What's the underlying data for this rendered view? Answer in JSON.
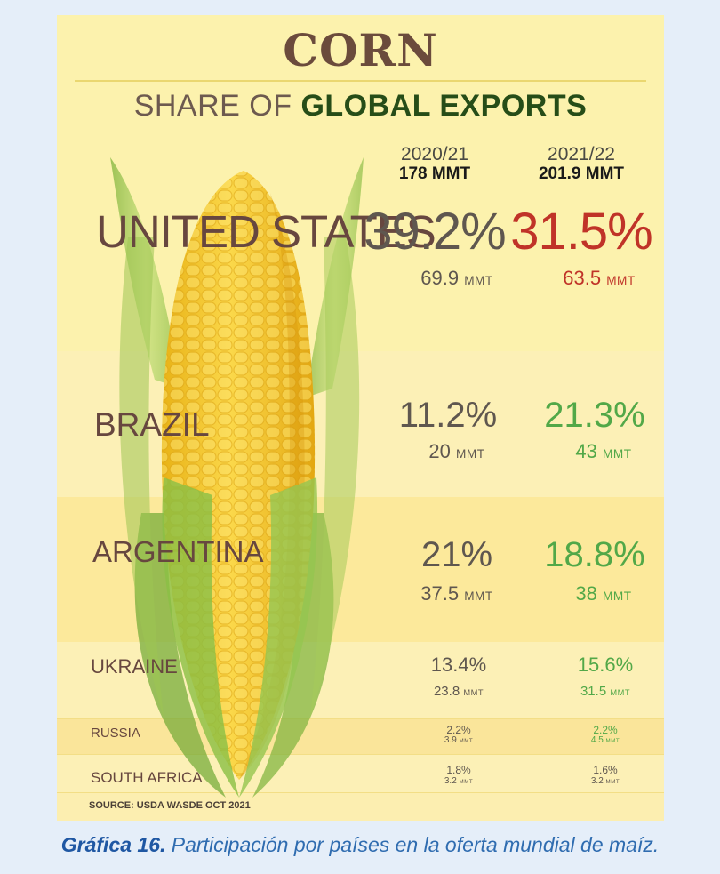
{
  "title": "CORN",
  "subtitle_prefix": "SHARE OF",
  "subtitle_emphasis": "GLOBAL EXPORTS",
  "years": [
    {
      "label": "2020/21",
      "total": "178 MMT"
    },
    {
      "label": "2021/22",
      "total": "201.9 MMT"
    }
  ],
  "unit": "MMT",
  "source": "SOURCE: USDA WASDE OCT 2021",
  "caption_lead": "Gráfica 16.",
  "caption_text": "Participación por países en la oferta mundial de maíz.",
  "colors": {
    "background": "#e5eef9",
    "poster": "#fcf2ad",
    "title": "#6b4b3c",
    "emphasis": "#264d18",
    "decrease": "#c03328",
    "increase": "#52a848",
    "neutral": "#5f574f",
    "caption": "#2f6cb0"
  },
  "chart_data": {
    "type": "table",
    "title": "CORN",
    "subtitle": "SHARE OF GLOBAL EXPORTS",
    "columns": [
      "2020/21",
      "2021/22"
    ],
    "column_totals": [
      "178 MMT",
      "201.9 MMT"
    ],
    "rows": [
      {
        "country": "UNITED STATES",
        "share_2020_21": "39.2%",
        "volume_2020_21": "69.9",
        "share_2021_22": "31.5%",
        "volume_2021_22": "63.5"
      },
      {
        "country": "BRAZIL",
        "share_2020_21": "11.2%",
        "volume_2020_21": "20",
        "share_2021_22": "21.3%",
        "volume_2021_22": "43"
      },
      {
        "country": "ARGENTINA",
        "share_2020_21": "21%",
        "volume_2020_21": "37.5",
        "share_2021_22": "18.8%",
        "volume_2021_22": "38"
      },
      {
        "country": "UKRAINE",
        "share_2020_21": "13.4%",
        "volume_2020_21": "23.8",
        "share_2021_22": "15.6%",
        "volume_2021_22": "31.5"
      },
      {
        "country": "RUSSIA",
        "share_2020_21": "2.2%",
        "volume_2020_21": "3.9",
        "share_2021_22": "2.2%",
        "volume_2021_22": "4.5"
      },
      {
        "country": "SOUTH AFRICA",
        "share_2020_21": "1.8%",
        "volume_2020_21": "3.2",
        "share_2021_22": "1.6%",
        "volume_2021_22": "3.2"
      }
    ]
  }
}
